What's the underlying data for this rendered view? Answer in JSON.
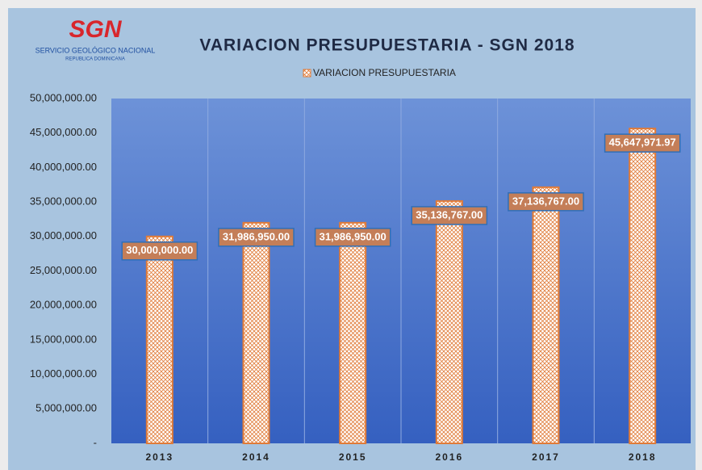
{
  "logo": {
    "name": "SGN",
    "line1": "SERVICIO GEOLÓGICO NACIONAL",
    "line2": "REPUBLICA DOMINICANA"
  },
  "chart_data": {
    "type": "bar",
    "title": "VARIACION  PRESUPUESTARIA - SGN 2018",
    "categories": [
      "2013",
      "2014",
      "2015",
      "2016",
      "2017",
      "2018"
    ],
    "series": [
      {
        "name": "VARIACION PRESUPUESTARIA",
        "color": "#e07b39",
        "values": [
          30000000,
          31986950,
          31986950,
          35136767,
          37136767,
          45647971.97
        ],
        "value_labels": [
          "30,000,000.00",
          "31,986,950.00",
          "31,986,950.00",
          "35,136,767.00",
          "37,136,767.00",
          "45,647,971.97"
        ]
      }
    ],
    "ylim": [
      0,
      50000000
    ],
    "yticks": [
      {
        "value": 0,
        "label": "-"
      },
      {
        "value": 5000000,
        "label": "5,000,000.00"
      },
      {
        "value": 10000000,
        "label": "10,000,000.00"
      },
      {
        "value": 15000000,
        "label": "15,000,000.00"
      },
      {
        "value": 20000000,
        "label": "20,000,000.00"
      },
      {
        "value": 25000000,
        "label": "25,000,000.00"
      },
      {
        "value": 30000000,
        "label": "30,000,000.00"
      },
      {
        "value": 35000000,
        "label": "35,000,000.00"
      },
      {
        "value": 40000000,
        "label": "40,000,000.00"
      },
      {
        "value": 45000000,
        "label": "45,000,000.00"
      },
      {
        "value": 50000000,
        "label": "50,000,000.00"
      }
    ],
    "grid": false,
    "legend": "top"
  }
}
